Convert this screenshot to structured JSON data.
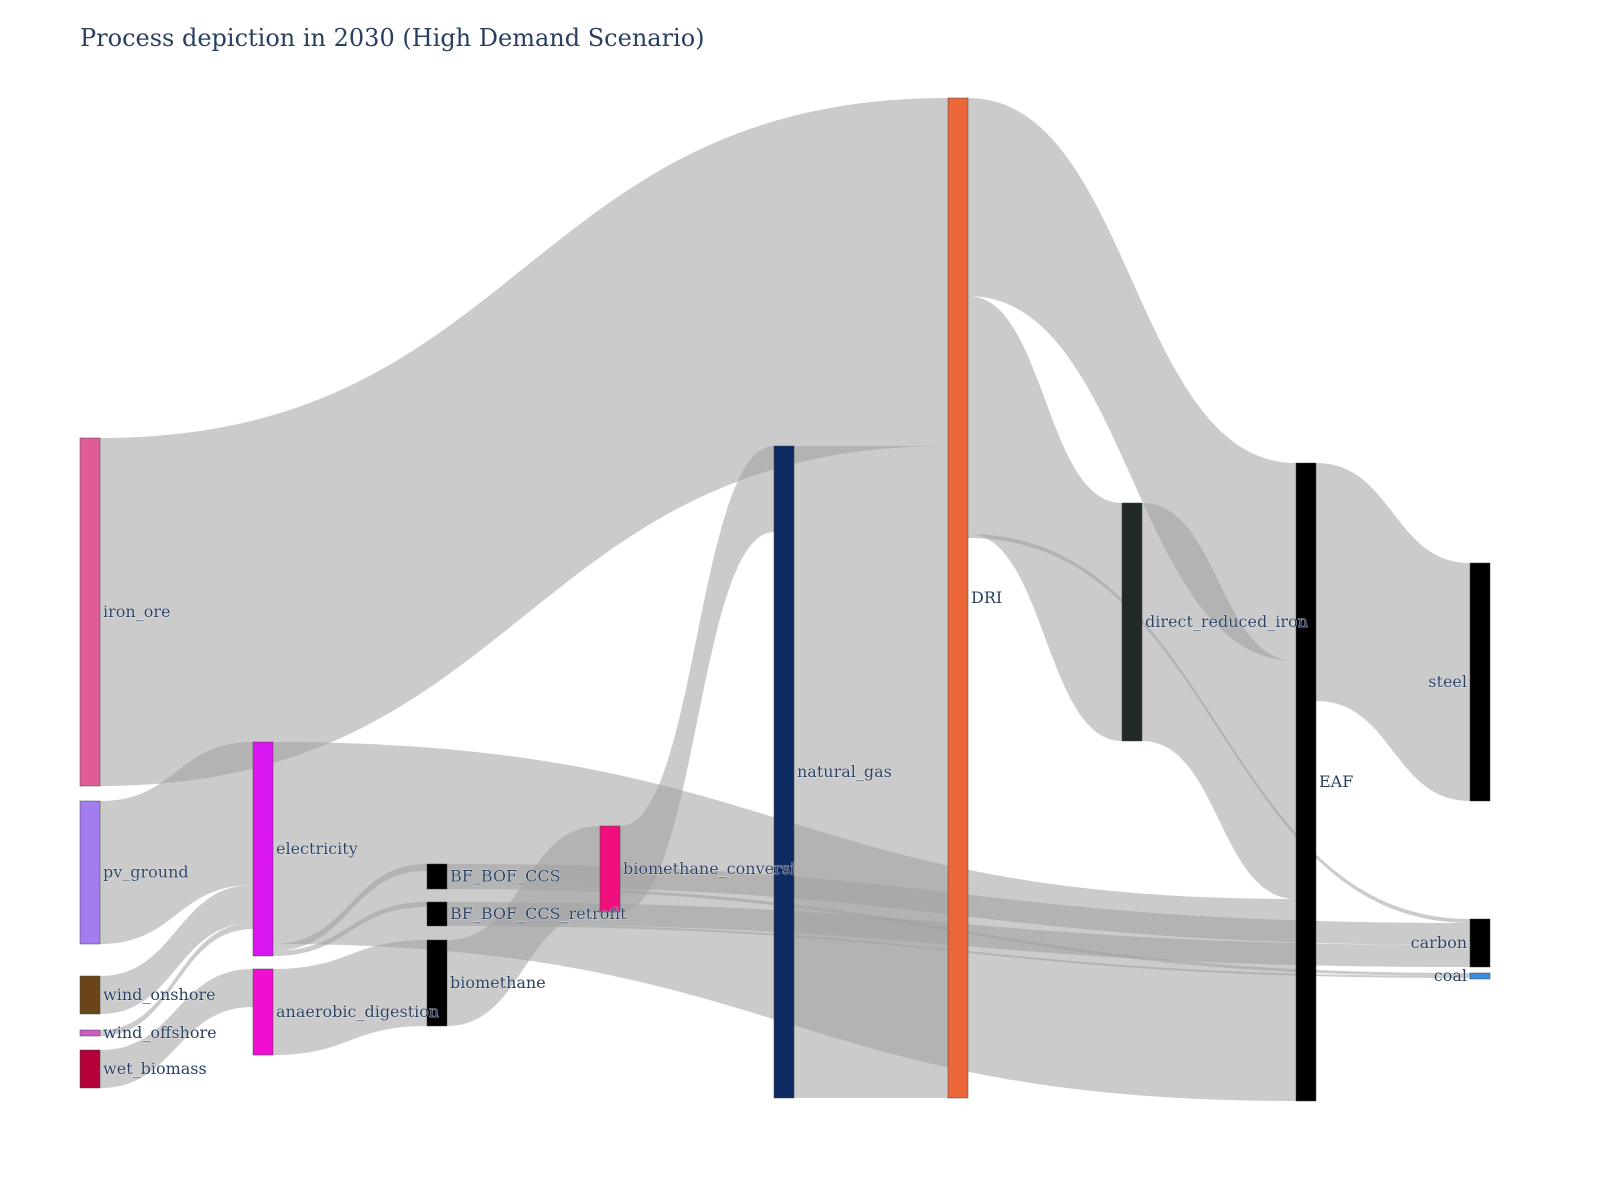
{
  "chart_data": {
    "type": "sankey",
    "title": "Process depiction in 2030 (High Demand Scenario)",
    "link_color": "#a0a0a0",
    "nodes": [
      {
        "id": "iron_ore",
        "label": "iron_ore",
        "color": "#e05c97"
      },
      {
        "id": "pv_ground",
        "label": "pv_ground",
        "color": "#a57cf0"
      },
      {
        "id": "wind_onshore",
        "label": "wind_onshore",
        "color": "#6b4517"
      },
      {
        "id": "wind_offshore",
        "label": "wind_offshore",
        "color": "#d05bc5"
      },
      {
        "id": "wet_biomass",
        "label": "wet_biomass",
        "color": "#b3003a"
      },
      {
        "id": "electricity",
        "label": "electricity",
        "color": "#d916f0"
      },
      {
        "id": "anaerobic_digestion",
        "label": "anaerobic_digestion",
        "color": "#f00fd0"
      },
      {
        "id": "BF_BOF_CCS",
        "label": "BF_BOF_CCS",
        "color": "#000000"
      },
      {
        "id": "BF_BOF_CCS_retrofit",
        "label": "BF_BOF_CCS_retrofit",
        "color": "#000000"
      },
      {
        "id": "biomethane",
        "label": "biomethane",
        "color": "#000000"
      },
      {
        "id": "biomethane_conversion",
        "label": "biomethane_conversi",
        "color": "#f00f7d"
      },
      {
        "id": "natural_gas",
        "label": "natural_gas",
        "color": "#0e2a63"
      },
      {
        "id": "DRI",
        "label": "DRI",
        "color": "#eb673a"
      },
      {
        "id": "direct_reduced_iron",
        "label": "direct_reduced_iron",
        "color": "#222a28"
      },
      {
        "id": "EAF",
        "label": "EAF",
        "color": "#000000"
      },
      {
        "id": "steel",
        "label": "steel",
        "color": "#000000"
      },
      {
        "id": "carbon",
        "label": "carbon",
        "color": "#000000"
      },
      {
        "id": "coal",
        "label": "coal",
        "color": "#3b8ee0"
      }
    ],
    "links": [
      {
        "source": "iron_ore",
        "target": "DRI",
        "value": 34.8
      },
      {
        "source": "pv_ground",
        "target": "electricity",
        "value": 14.3
      },
      {
        "source": "wind_onshore",
        "target": "electricity",
        "value": 3.8
      },
      {
        "source": "wind_offshore",
        "target": "electricity",
        "value": 0.6
      },
      {
        "source": "wet_biomass",
        "target": "anaerobic_digestion",
        "value": 3.8
      },
      {
        "source": "electricity",
        "target": "EAF",
        "value": 20.2
      },
      {
        "source": "electricity",
        "target": "BF_BOF_CCS",
        "value": 0.7
      },
      {
        "source": "electricity",
        "target": "BF_BOF_CCS_retrofit",
        "value": 0.5
      },
      {
        "source": "anaerobic_digestion",
        "target": "biomethane",
        "value": 8.6
      },
      {
        "source": "BF_BOF_CCS",
        "target": "carbon",
        "value": 2.2
      },
      {
        "source": "BF_BOF_CCS",
        "target": "coal",
        "value": 0.3
      },
      {
        "source": "BF_BOF_CCS_retrofit",
        "target": "carbon",
        "value": 2.2
      },
      {
        "source": "BF_BOF_CCS_retrofit",
        "target": "coal",
        "value": 0.2
      },
      {
        "source": "biomethane",
        "target": "biomethane_conversion",
        "value": 8.6
      },
      {
        "source": "biomethane_conversion",
        "target": "natural_gas",
        "value": 8.6
      },
      {
        "source": "natural_gas",
        "target": "DRI",
        "value": 65.2
      },
      {
        "source": "DRI",
        "target": "direct_reduced_iron",
        "value": 23.8
      },
      {
        "source": "DRI",
        "target": "EAF",
        "value": 19.8
      },
      {
        "source": "DRI",
        "target": "carbon",
        "value": 0.4
      },
      {
        "source": "direct_reduced_iron",
        "target": "EAF",
        "value": 23.8
      },
      {
        "source": "EAF",
        "target": "steel",
        "value": 23.8
      }
    ]
  }
}
